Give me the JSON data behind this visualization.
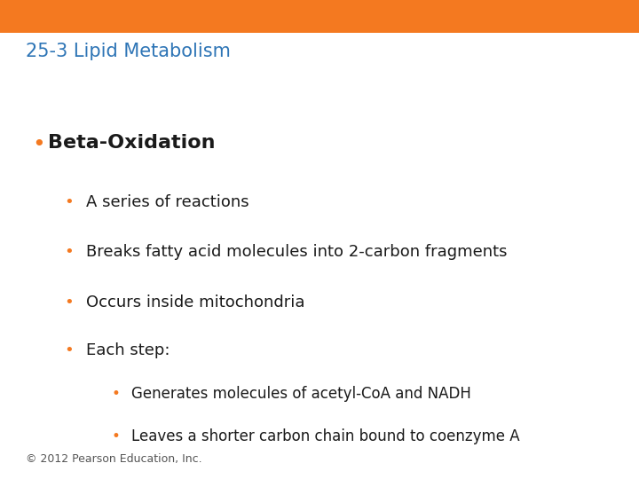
{
  "title": "25-3 Lipid Metabolism",
  "title_color": "#2E75B6",
  "header_bar_color": "#F47920",
  "background_color": "#FFFFFF",
  "orange_bullet": "#F47920",
  "bullet1_text": "Beta-Oxidation",
  "bullet1_color": "#1A1A1A",
  "sub_bullets": [
    "A series of reactions",
    "Breaks fatty acid molecules into 2-carbon fragments",
    "Occurs inside mitochondria",
    "Each step:"
  ],
  "sub_sub_bullets": [
    "Generates molecules of acetyl-CoA and NADH",
    "Leaves a shorter carbon chain bound to coenzyme A"
  ],
  "footer_text": "© 2012 Pearson Education, Inc.",
  "footer_color": "#555555",
  "title_fontsize": 15,
  "bullet1_fontsize": 16,
  "sub_fontsize": 13,
  "sub_sub_fontsize": 12,
  "footer_fontsize": 9
}
